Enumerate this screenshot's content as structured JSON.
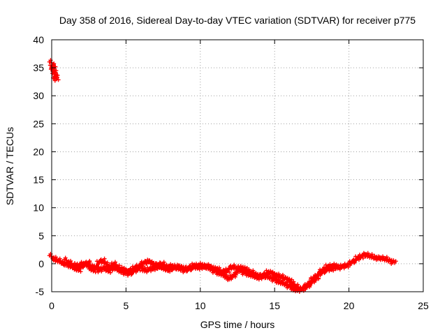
{
  "chart_data": {
    "type": "scatter",
    "title": "Day 358 of 2016, Sidereal Day-to-day VTEC variation (SDTVAR) for receiver p775",
    "xlabel": "GPS time / hours",
    "ylabel": "SDTVAR / TECUs",
    "xlim": [
      0,
      25
    ],
    "ylim": [
      -5,
      40
    ],
    "xticks": [
      0,
      5,
      10,
      15,
      20,
      25
    ],
    "yticks": [
      -5,
      0,
      5,
      10,
      15,
      20,
      25,
      30,
      35,
      40
    ],
    "grid": true,
    "marker": "plus",
    "series": [
      {
        "name": "p775",
        "color": "#ff0000",
        "segments": [
          {
            "x": [
              0.0,
              0.05,
              0.1,
              0.15,
              0.2,
              0.25,
              0.3
            ],
            "y": [
              35.6,
              35.3,
              34.9,
              34.5,
              34.0,
              33.5,
              33.0
            ]
          },
          {
            "x": [
              0.0,
              0.2,
              0.4,
              0.6,
              0.8,
              1.0,
              1.2,
              1.4,
              1.6,
              1.8,
              2.0,
              2.2,
              2.4,
              2.6,
              2.8,
              3.0,
              3.2,
              3.4,
              3.6,
              3.8,
              4.0,
              4.2,
              4.4,
              4.6,
              4.8,
              5.0,
              5.2,
              5.4,
              5.6,
              5.8,
              6.0,
              6.2,
              6.4,
              6.6,
              6.8,
              7.0,
              7.2,
              7.4,
              7.6,
              7.8,
              8.0,
              8.2,
              8.4,
              8.6,
              8.8,
              9.0,
              9.2,
              9.4,
              9.6,
              9.8,
              10.0,
              10.2,
              10.4,
              10.6,
              10.8,
              11.0,
              11.2,
              11.4,
              11.6,
              11.8,
              12.0,
              12.2,
              12.4,
              12.6,
              12.8,
              13.0,
              13.2,
              13.4,
              13.6,
              13.8,
              14.0,
              14.2,
              14.4,
              14.6,
              14.8,
              15.0,
              15.2,
              15.4,
              15.6,
              15.8,
              16.0,
              16.2,
              16.4,
              16.6,
              16.8,
              17.0,
              17.2,
              17.4,
              17.6,
              17.8,
              18.0,
              18.2,
              18.4,
              18.6,
              18.8,
              19.0,
              19.2,
              19.4,
              19.6,
              19.8,
              20.0,
              20.2,
              20.4,
              20.6,
              20.8,
              21.0,
              21.2,
              21.4,
              21.6,
              21.8,
              22.0,
              22.2,
              22.4,
              22.6,
              22.8,
              23.0
            ],
            "y": [
              1.0,
              0.9,
              0.6,
              0.4,
              0.0,
              0.0,
              -0.3,
              -0.2,
              -0.6,
              -0.3,
              0.0,
              -0.3,
              0.2,
              -0.4,
              -0.5,
              -0.7,
              -1.2,
              -0.8,
              -0.9,
              -1.3,
              -1.0,
              -0.7,
              -0.9,
              -1.3,
              -1.5,
              -1.6,
              -1.3,
              -1.0,
              -0.8,
              -0.5,
              -0.2,
              0.2,
              0.3,
              0.4,
              0.0,
              -0.2,
              -0.1,
              0.0,
              -0.3,
              -0.5,
              -0.4,
              -0.5,
              -0.7,
              -0.9,
              -1.0,
              -1.2,
              -1.0,
              -0.8,
              -0.6,
              -0.7,
              -0.5,
              -0.6,
              -0.4,
              -0.5,
              -0.7,
              -0.9,
              -1.0,
              -1.4,
              -2.0,
              -2.5,
              -2.6,
              -2.2,
              -1.7,
              -1.0,
              -0.7,
              -0.9,
              -1.3,
              -1.5,
              -1.7,
              -2.0,
              -2.2,
              -2.4,
              -1.8,
              -1.5,
              -1.6,
              -2.0,
              -2.1,
              -2.3,
              -2.5,
              -2.7,
              -3.0,
              -3.5,
              -4.0,
              -4.3,
              -4.5,
              -4.4,
              -4.0,
              -3.5,
              -3.0,
              -2.4,
              -1.8,
              -1.2,
              -0.8,
              -0.5,
              -0.4,
              -0.3,
              -0.6,
              -0.7,
              -0.5,
              -0.3,
              -0.1,
              0.3,
              0.6,
              1.0,
              1.3,
              1.6,
              1.6,
              1.4,
              1.2,
              1.1,
              1.0,
              1.0,
              0.9,
              0.7,
              0.5,
              0.3
            ]
          },
          {
            "x": [
              1.0,
              1.2,
              1.4,
              1.6,
              1.8,
              2.0,
              2.2,
              2.4,
              2.6,
              2.8,
              3.0,
              3.2,
              3.4,
              3.6,
              3.8,
              4.0,
              4.2,
              4.4,
              4.6,
              4.8,
              5.0,
              5.2,
              5.4,
              5.6,
              5.8,
              6.0,
              6.2,
              6.4,
              6.6,
              6.8,
              7.0,
              7.2,
              7.4,
              7.6,
              7.8,
              8.0,
              8.2,
              8.4,
              8.6,
              8.8,
              9.0,
              9.2,
              9.4,
              9.6,
              9.8,
              10.0,
              10.2,
              10.4,
              10.6,
              10.8,
              11.0,
              11.2,
              11.4,
              11.6,
              11.8,
              12.0,
              12.2,
              12.4,
              12.6,
              12.8,
              13.0,
              13.2,
              13.4,
              13.6,
              13.8,
              14.0,
              14.2,
              14.4,
              14.6,
              14.8,
              15.0,
              15.2,
              15.4,
              15.6,
              15.8,
              16.0,
              16.2,
              16.4,
              16.6,
              16.8,
              17.0,
              17.2,
              17.4,
              17.6,
              17.8,
              18.0,
              18.2,
              18.4,
              18.6,
              18.8,
              19.0
            ],
            "y": [
              0.3,
              0.2,
              -0.5,
              -0.9,
              -1.1,
              -0.5,
              -0.1,
              0.0,
              -0.8,
              -1.2,
              -0.9,
              0.3,
              0.6,
              0.2,
              -0.4,
              -0.5,
              0.0,
              -0.6,
              -1.0,
              -0.9,
              -1.3,
              -1.8,
              -1.5,
              -1.2,
              -0.9,
              -0.6,
              -1.0,
              -1.2,
              -1.0,
              -0.8,
              -0.7,
              -0.6,
              -0.6,
              -0.9,
              -1.1,
              -1.0,
              -0.8,
              -0.6,
              -0.5,
              -0.7,
              -0.9,
              -0.7,
              -0.5,
              -0.3,
              -0.3,
              -0.2,
              -0.4,
              -0.6,
              -0.8,
              -1.1,
              -1.3,
              -1.6,
              -1.8,
              -1.6,
              -1.2,
              -0.8,
              -0.5,
              -0.7,
              -1.0,
              -1.4,
              -1.6,
              -1.8,
              -2.0,
              -2.2,
              -2.5,
              -2.3,
              -2.0,
              -2.2,
              -2.4,
              -2.6,
              -2.8,
              -3.1,
              -3.3,
              -3.5,
              -3.8,
              -4.0,
              -4.3,
              -4.6,
              -4.7,
              -4.5,
              -4.2,
              -3.8,
              -3.3,
              -2.8,
              -2.3,
              -1.9,
              -1.5,
              -1.2,
              -1.0,
              -0.9,
              -0.8
            ]
          }
        ]
      }
    ]
  }
}
